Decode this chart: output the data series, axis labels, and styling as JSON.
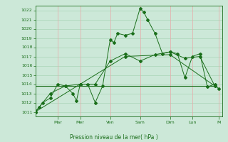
{
  "xlabel": "Pression niveau de la mer( hPa )",
  "bg_color": "#cce8d8",
  "plot_bg_color": "#cce8d8",
  "line_color": "#1a6e1a",
  "grid_color_h": "#aad4b8",
  "grid_color_v": "#e8a8a8",
  "ylim": [
    1010.5,
    1022.5
  ],
  "yticks": [
    1011,
    1012,
    1013,
    1014,
    1015,
    1016,
    1017,
    1018,
    1019,
    1020,
    1021,
    1022
  ],
  "xlim": [
    0,
    25
  ],
  "day_labels": [
    "Mar",
    "Mer",
    "Ven",
    "Sam",
    "Dim",
    "Lun",
    "M"
  ],
  "day_positions": [
    3,
    6,
    10,
    14,
    18,
    21,
    24.5
  ],
  "line1_x": [
    0,
    0.5,
    1,
    2,
    3,
    4,
    5,
    5.5,
    6,
    7,
    8,
    9,
    10,
    10.5,
    11,
    12,
    13,
    14,
    14.5,
    15,
    16,
    17,
    18,
    19,
    20,
    21,
    22,
    23,
    24,
    24.5
  ],
  "line1_y": [
    1011,
    1011.5,
    1012,
    1012.5,
    1014,
    1013.8,
    1013,
    1012.2,
    1014,
    1014,
    1012,
    1013.8,
    1018.8,
    1018.5,
    1019.5,
    1019.3,
    1019.5,
    1022.2,
    1021.8,
    1021,
    1019.5,
    1017.3,
    1017.5,
    1017.3,
    1014.7,
    1017.0,
    1017.3,
    1013.7,
    1014.0,
    1013.5
  ],
  "line2_x": [
    0,
    2,
    4,
    6,
    8,
    10,
    12,
    14,
    16,
    18,
    20,
    22,
    24
  ],
  "line2_y": [
    1011,
    1013,
    1013.8,
    1014,
    1014,
    1016.5,
    1017.3,
    1016.5,
    1017.2,
    1017.5,
    1016.8,
    1017.0,
    1013.8
  ],
  "line3_x": [
    0,
    6,
    12,
    18,
    24
  ],
  "line3_y": [
    1011,
    1014,
    1017,
    1017.2,
    1013.8
  ],
  "line4_x": [
    0,
    24
  ],
  "line4_y": [
    1013.8,
    1013.8
  ]
}
